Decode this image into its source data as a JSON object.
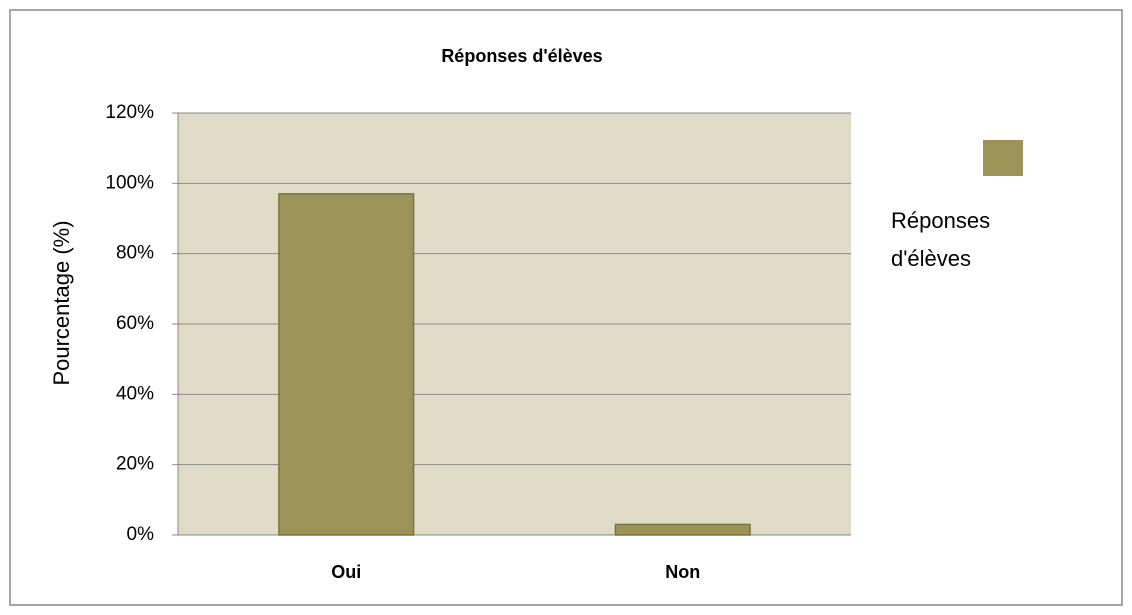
{
  "chart_data": {
    "type": "bar",
    "title": "Réponses d'élèves",
    "y_label": "Pourcentage (%)",
    "categories": [
      "Oui",
      "Non"
    ],
    "series": [
      {
        "name": "Réponses d'élèves",
        "color": "#9b9358",
        "values": [
          97,
          3
        ]
      }
    ],
    "ylim": [
      0,
      120
    ],
    "yticks": [
      {
        "value": 0,
        "label": "0%"
      },
      {
        "value": 20,
        "label": "20%"
      },
      {
        "value": 40,
        "label": "40%"
      },
      {
        "value": 60,
        "label": "60%"
      },
      {
        "value": 80,
        "label": "80%"
      },
      {
        "value": 100,
        "label": "100%"
      },
      {
        "value": 120,
        "label": "120%"
      }
    ],
    "grid": true,
    "legend": "right",
    "category_color": "#d8802c",
    "plot_background": "#e0dbc6"
  }
}
